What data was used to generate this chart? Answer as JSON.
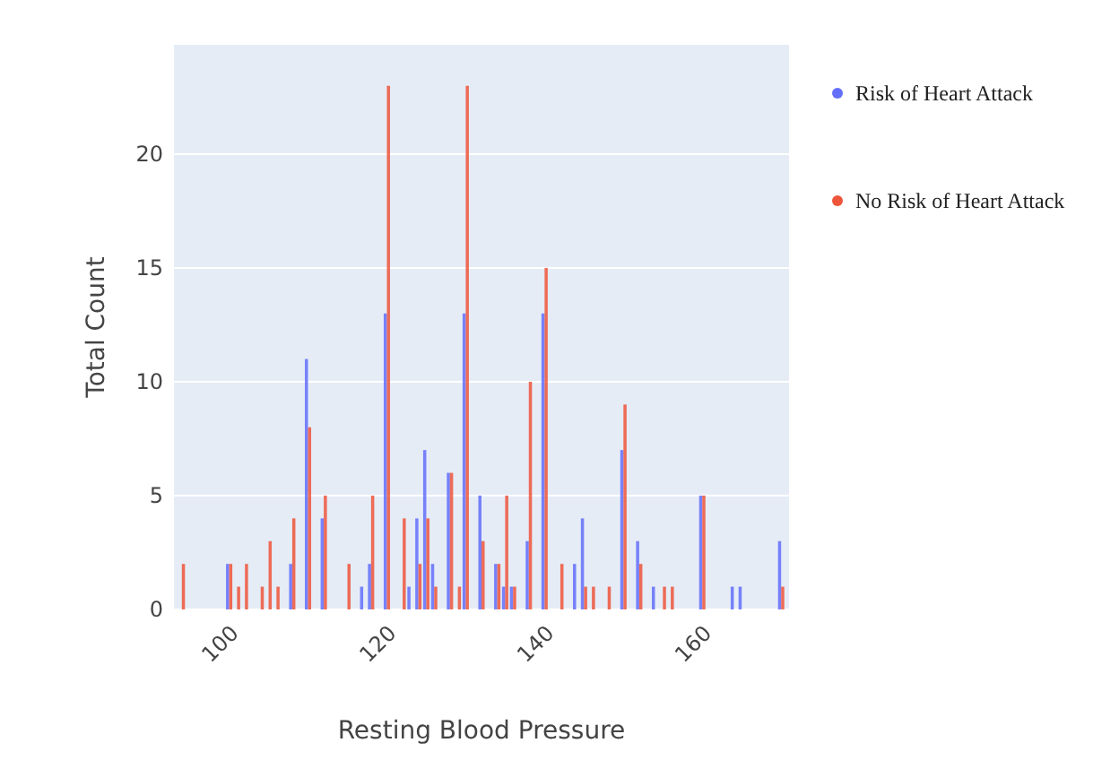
{
  "chart_data": {
    "type": "bar",
    "xlabel": "Resting Blood Pressure",
    "ylabel": "Total Count",
    "x": [
      94,
      100,
      101,
      102,
      104,
      105,
      106,
      108,
      110,
      112,
      115,
      117,
      118,
      120,
      122,
      123,
      124,
      125,
      126,
      128,
      129,
      130,
      132,
      134,
      135,
      136,
      138,
      140,
      142,
      144,
      145,
      146,
      148,
      150,
      152,
      154,
      155,
      156,
      160,
      164,
      165,
      170
    ],
    "series": [
      {
        "name": "Risk of Heart Attack",
        "color": "#636efa",
        "values": [
          null,
          2,
          null,
          null,
          null,
          null,
          null,
          2,
          11,
          4,
          null,
          1,
          2,
          13,
          null,
          1,
          4,
          7,
          2,
          6,
          null,
          13,
          5,
          2,
          1,
          1,
          3,
          13,
          null,
          2,
          4,
          null,
          null,
          7,
          3,
          1,
          null,
          null,
          5,
          1,
          1,
          3
        ]
      },
      {
        "name": "No Risk of Heart Attack",
        "color": "#ef553b",
        "values": [
          2,
          2,
          1,
          2,
          1,
          3,
          1,
          4,
          8,
          5,
          2,
          null,
          5,
          23,
          4,
          null,
          2,
          4,
          1,
          6,
          1,
          23,
          3,
          2,
          5,
          1,
          10,
          15,
          2,
          null,
          1,
          1,
          1,
          9,
          2,
          null,
          1,
          1,
          5,
          null,
          null,
          1
        ]
      }
    ],
    "xlim": [
      93,
      171
    ],
    "xticks": [
      100,
      120,
      140,
      160
    ],
    "ylim": [
      0,
      24.8
    ],
    "yticks": [
      0,
      5,
      10,
      15,
      20
    ],
    "grid": "y",
    "legend": "top right"
  }
}
